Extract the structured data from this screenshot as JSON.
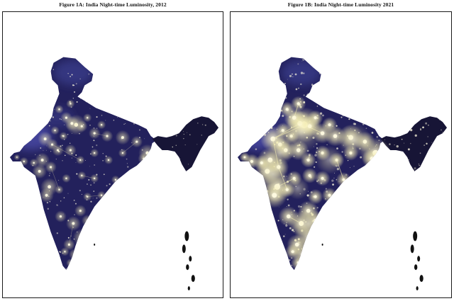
{
  "figures": [
    {
      "id": "A",
      "caption": "Figure 1A: India Night-time Luminosity, 2012",
      "year": 2012,
      "brightness": 0.35
    },
    {
      "id": "B",
      "caption": "Figure 1B: India Night-time Luminosity 2021",
      "year": 2021,
      "brightness": 1.0
    }
  ],
  "colors": {
    "land": "#23215c",
    "land_highlight": "#33357d",
    "north_tint": "#3a3c8c",
    "west_tint": "#4a4aa8",
    "northeast_dark": "#171536",
    "light_core": "#fffbe0",
    "light_glow": "#f3ecb0",
    "border": "#1a1a1a"
  }
}
